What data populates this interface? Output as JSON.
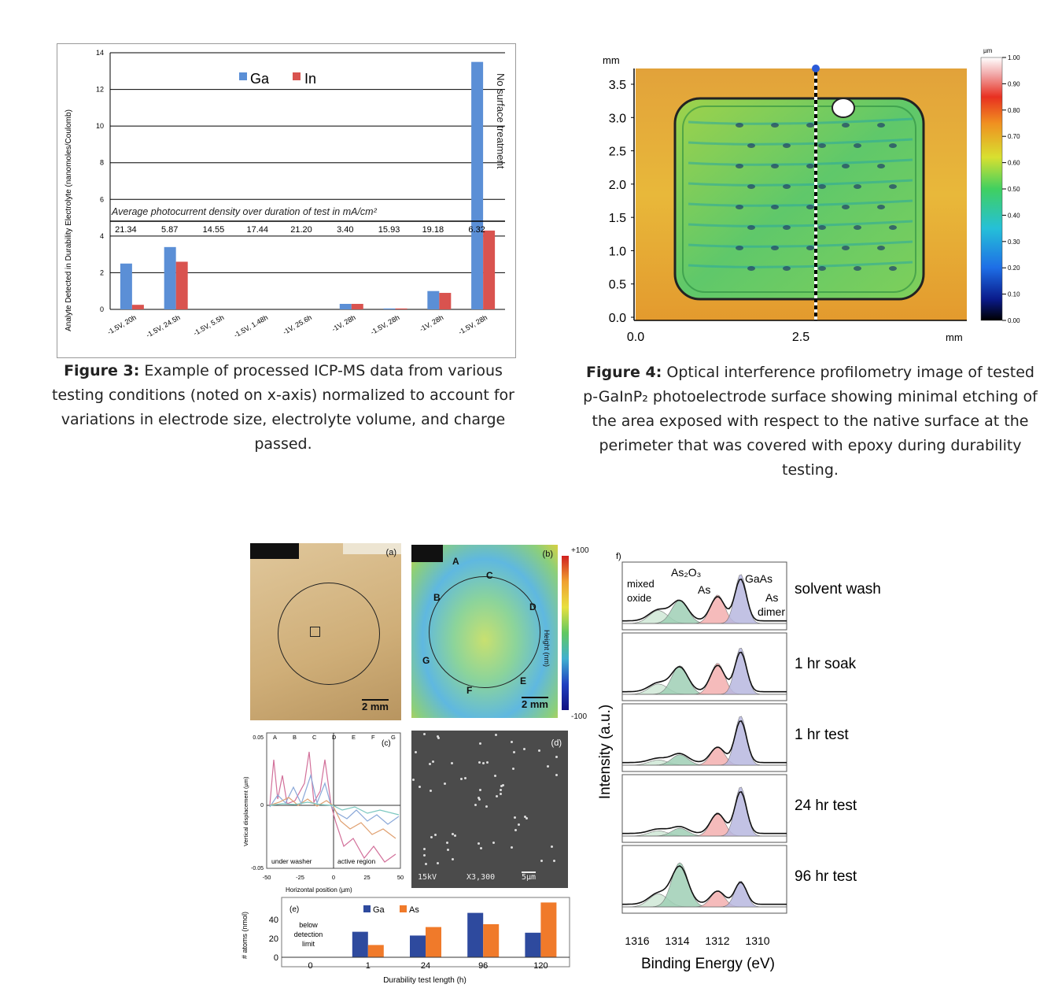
{
  "figure3": {
    "caption_label": "Figure 3:",
    "caption_text": " Example of processed ICP-MS data from various testing conditions (noted on x-axis) normalized to account for variations in electrode size, electrolyte volume, and charge passed.",
    "annotation": "Average photocurrent density over duration of test in mA/cm²",
    "current_values": [
      "21.34",
      "5.87",
      "14.55",
      "17.44",
      "21.20",
      "3.40",
      "15.93",
      "19.18",
      "6.32"
    ],
    "side_note": "No surface treatment"
  },
  "figure4": {
    "caption_label": "Figure 4:",
    "caption_text": " Optical interference profilometry image of tested p-GaInP₂ photoelectrode surface showing minimal etching of the area exposed with respect to the native surface at the perimeter that was covered with epoxy during durability testing.",
    "y_unit": "mm",
    "x_unit": "mm",
    "y_ticks": [
      "3.5",
      "3.0",
      "2.5",
      "2.0",
      "1.5",
      "1.0",
      "0.5",
      "0.0"
    ],
    "x_ticks": [
      "0.0",
      "2.5"
    ],
    "colorbar_unit": "µm",
    "colorbar_ticks": [
      "1.00",
      "0.90",
      "0.80",
      "0.70",
      "0.60",
      "0.50",
      "0.40",
      "0.30",
      "0.20",
      "0.10",
      "0.00"
    ]
  },
  "figure5": {
    "panel_a": "(a)",
    "panel_b": "(b)",
    "panel_c": "(c)",
    "panel_d": "(d)",
    "panel_e": "(e)",
    "panel_f": "f)",
    "scale_a": "2 mm",
    "scale_b": "2 mm",
    "height_label": "Height (nm)",
    "height_max": "+100",
    "height_min": "-100",
    "points": [
      "A",
      "B",
      "C",
      "D",
      "E",
      "F",
      "G"
    ],
    "c_xlabel": "Horizontal position (µm)",
    "c_ylabel": "Vertical displacement (µm)",
    "c_under": "under washer",
    "c_active": "active region",
    "c_ticks_x": [
      "-50",
      "-25",
      "0",
      "25",
      "50"
    ],
    "c_ticks_y": [
      "0.05",
      "0",
      "-0.05"
    ],
    "d_kv": "15kV",
    "d_mag": "X3,300",
    "d_scale": "5µm",
    "e_below": "below detection limit",
    "xps_ylabel": "Intensity (a.u.)",
    "xps_xlabel": "Binding Energy (eV)",
    "xps_ticks": [
      "1316",
      "1314",
      "1312",
      "1310"
    ],
    "xps_peaks": [
      "mixed oxide",
      "As₂O₃",
      "As",
      "GaAs",
      "As dimer"
    ],
    "xps_rows": [
      "solvent wash",
      "1 hr soak",
      "1 hr test",
      "24 hr test",
      "96 hr test"
    ]
  },
  "chart_data": [
    {
      "type": "bar",
      "title": "",
      "ylabel": "Analyte Detected in Durability Electrolyte (nanomoles/Coulomb)",
      "xlabel": "",
      "ylim": [
        0,
        14
      ],
      "yticks": [
        "0",
        "2",
        "4",
        "6",
        "8",
        "10",
        "12",
        "14"
      ],
      "categories": [
        "-1.5V, 20h",
        "-1.5V, 24.5h",
        "-1.5V, 5.5h",
        "-1.5V, 1.48h",
        "-1V, 25.6h",
        "-1V, 28h",
        "-1.5V, 28h",
        "-1V, 28h",
        "-1.5V, 28h"
      ],
      "series": [
        {
          "name": "Ga",
          "color": "#5b8fd6",
          "values": [
            2.5,
            3.4,
            0,
            0,
            0,
            0.3,
            0.05,
            1.0,
            13.5
          ]
        },
        {
          "name": "In",
          "color": "#d9534f",
          "values": [
            0.25,
            2.6,
            0,
            0,
            0,
            0.3,
            0.05,
            0.9,
            4.3
          ]
        }
      ],
      "legend": "top-center",
      "grid": true
    },
    {
      "type": "bar",
      "title": "",
      "xlabel": "Durability test length (h)",
      "ylabel": "# atoms (nmol)",
      "ylim": [
        0,
        60
      ],
      "yticks": [
        "0",
        "20",
        "40"
      ],
      "categories": [
        "0",
        "1",
        "24",
        "96",
        "120"
      ],
      "series": [
        {
          "name": "Ga",
          "color": "#2e4a9e",
          "values": [
            0,
            27,
            23,
            47,
            26
          ]
        },
        {
          "name": "As",
          "color": "#f07a2a",
          "values": [
            0,
            13,
            32,
            35,
            58
          ]
        }
      ],
      "legend": "top-left",
      "grid": false
    }
  ]
}
